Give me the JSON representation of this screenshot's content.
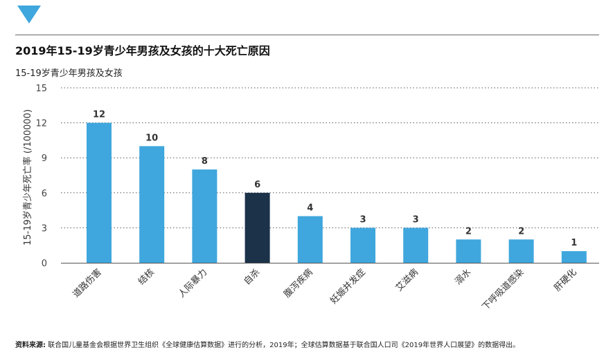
{
  "title": "2019年15-19岁青少年男孩及女孩的十大死亡原因",
  "subtitle": "15-19岁青少年男孩及女孩",
  "source": {
    "label": "资料来源:",
    "text": " 联合国儿童基金会根据世界卫生组织《全球健康估算数据》进行的分析，2019年；全球估算数据基于联合国人口司《2019年世界人口展望》的数据得出。"
  },
  "colors": {
    "bar": "#3fa7dd",
    "highlight_bar": "#1b3249",
    "highlight_label": "#1b3249",
    "logo": "#3fa7dd"
  },
  "chart_data": {
    "type": "bar",
    "title": "2019年15-19岁青少年男孩及女孩的十大死亡原因",
    "subtitle": "15-19岁青少年男孩及女孩",
    "xlabel": "",
    "ylabel": "15-19岁青少年死亡率 (/100000)",
    "categories": [
      "道路伤害",
      "结核",
      "人际暴力",
      "自杀",
      "腹泻疾病",
      "妊娠并发症",
      "艾滋病",
      "溺水",
      "下呼吸道感染",
      "肝硬化"
    ],
    "values": [
      12,
      10,
      8,
      6,
      4,
      3,
      3,
      2,
      2,
      1
    ],
    "highlight": "自杀",
    "ylim": [
      0,
      15
    ],
    "yticks": [
      0,
      3,
      6,
      9,
      12,
      15
    ],
    "grid": true,
    "legend": "none"
  }
}
